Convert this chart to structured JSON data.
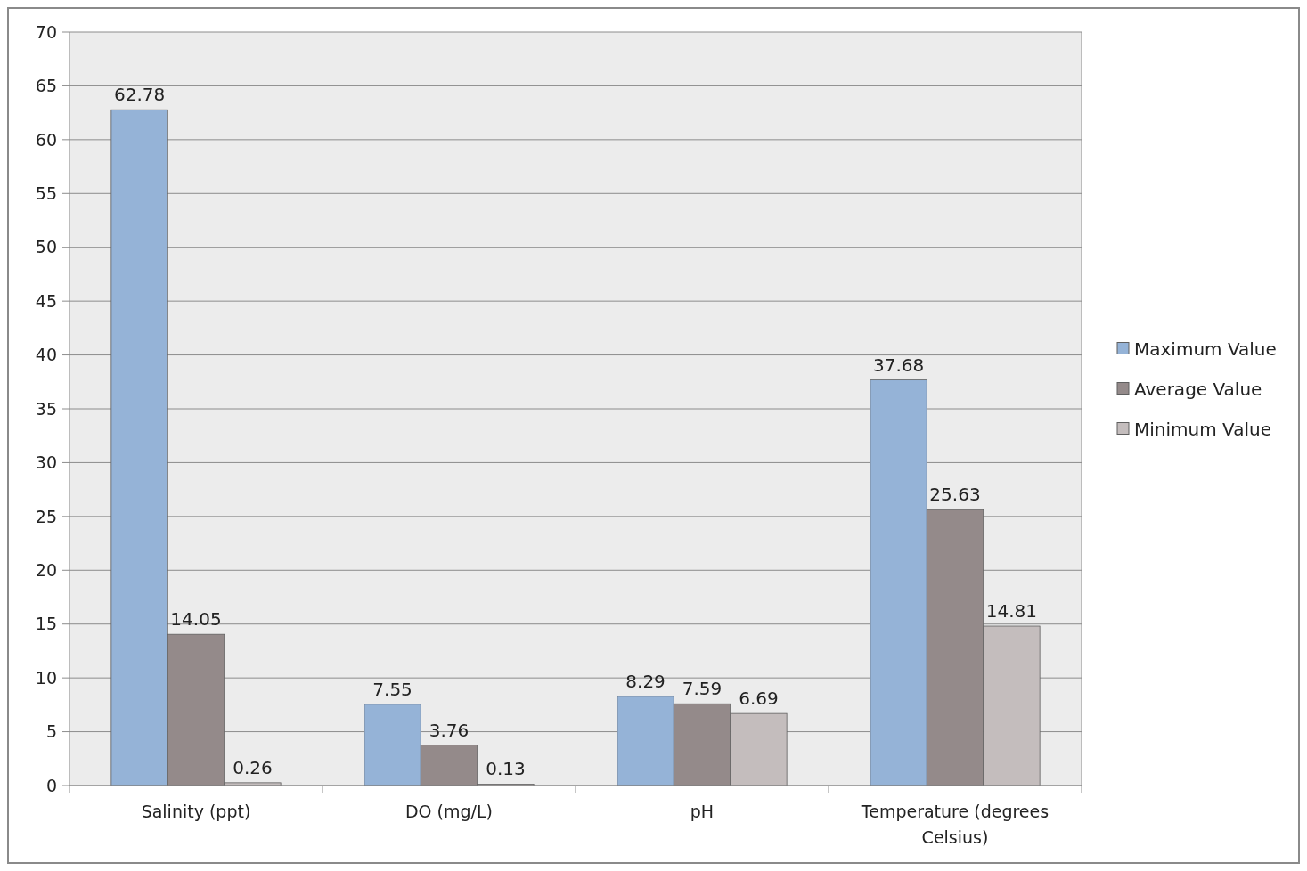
{
  "chart_data": {
    "type": "bar",
    "categories": [
      "Salinity (ppt)",
      "DO (mg/L)",
      "pH",
      "Temperature (degrees Celsius)"
    ],
    "series": [
      {
        "name": "Maximum Value",
        "color": "#95b3d7",
        "values": [
          62.78,
          7.55,
          8.29,
          37.68
        ]
      },
      {
        "name": "Average Value",
        "color": "#948a8a",
        "values": [
          14.05,
          3.76,
          7.59,
          25.63
        ]
      },
      {
        "name": "Minimum Value",
        "color": "#c4bdbd",
        "values": [
          0.26,
          0.13,
          6.69,
          14.81
        ]
      }
    ],
    "ylim": [
      0,
      70
    ],
    "yticks": [
      0,
      5,
      10,
      15,
      20,
      25,
      30,
      35,
      40,
      45,
      50,
      55,
      60,
      65,
      70
    ],
    "grid": "y",
    "legend": "right",
    "data_labels": true
  }
}
